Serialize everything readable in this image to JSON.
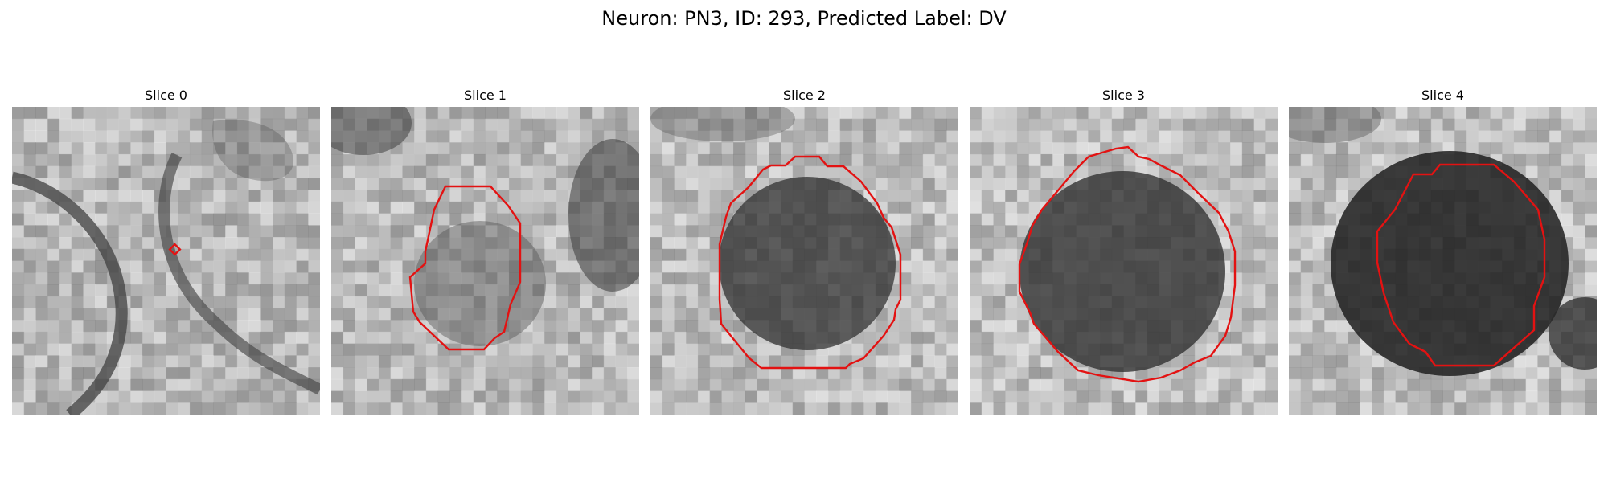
{
  "figure": {
    "title": "Neuron: PN3, ID: 293, Predicted Label: DV"
  },
  "slices": [
    {
      "label": "Slice 0"
    },
    {
      "label": "Slice 1"
    },
    {
      "label": "Slice 2"
    },
    {
      "label": "Slice 3"
    },
    {
      "label": "Slice 4"
    }
  ],
  "colors": {
    "contour": "#e31212",
    "background": "#ffffff"
  }
}
